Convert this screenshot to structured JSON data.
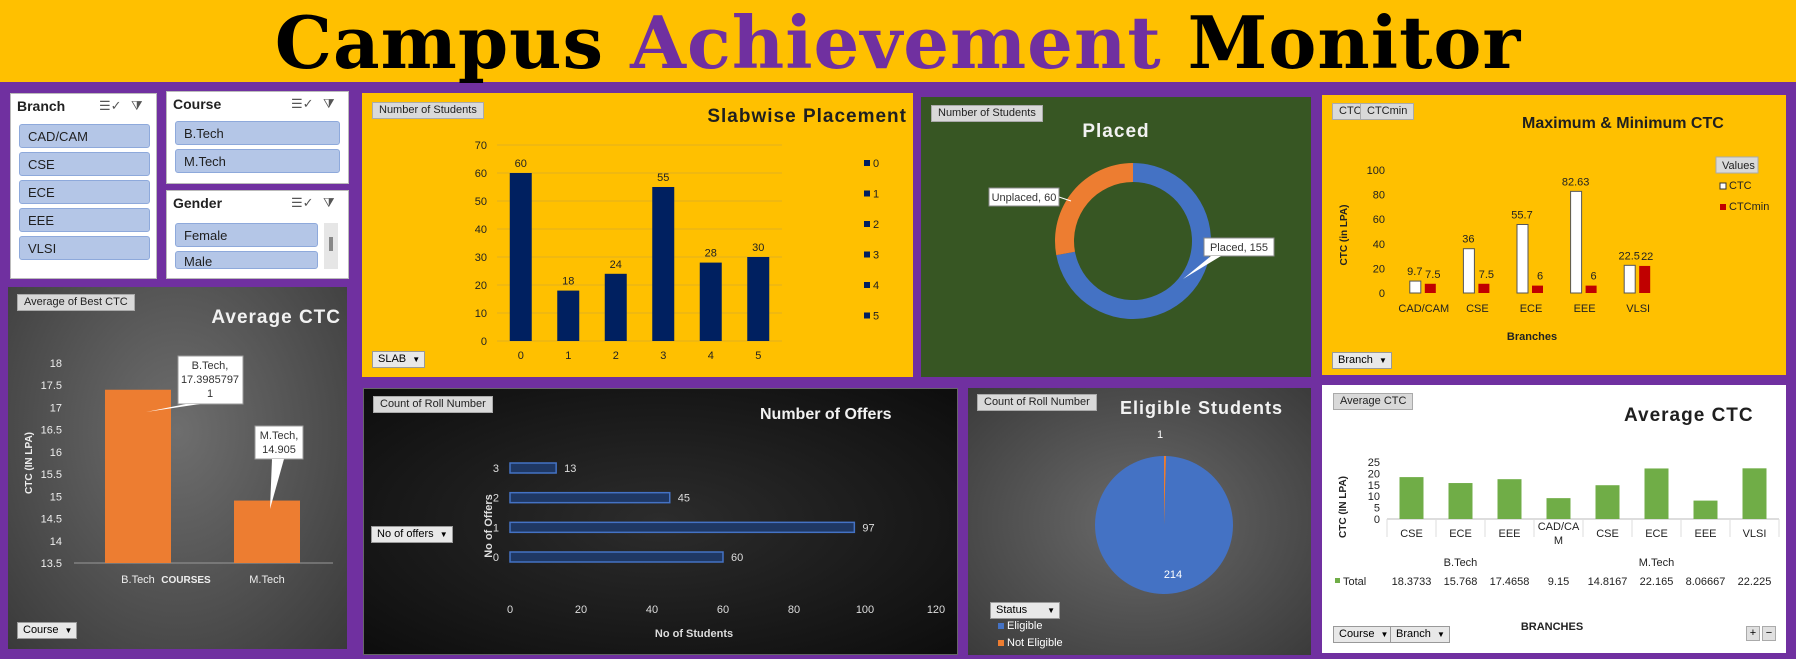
{
  "title": {
    "w1": "Campus",
    "w2": "Achievement",
    "w3": "Monitor"
  },
  "slicers": {
    "branch": {
      "header": "Branch",
      "items": [
        "CAD/CAM",
        "CSE",
        "ECE",
        "EEE",
        "VLSI"
      ]
    },
    "course": {
      "header": "Course",
      "items": [
        "B.Tech",
        "M.Tech"
      ]
    },
    "gender": {
      "header": "Gender",
      "items": [
        "Female",
        "Male"
      ]
    }
  },
  "slab": {
    "field": "Number of Students",
    "title": "Slabwise Placement",
    "filter": "SLAB",
    "chart_data": {
      "type": "bar",
      "categories": [
        "0",
        "1",
        "2",
        "3",
        "4",
        "5"
      ],
      "values": [
        60,
        18,
        24,
        55,
        28,
        30
      ],
      "ylim": [
        0,
        70
      ],
      "yticks": [
        0,
        10,
        20,
        30,
        40,
        50,
        60,
        70
      ],
      "legend": [
        "0",
        "1",
        "2",
        "3",
        "4",
        "5"
      ]
    }
  },
  "placed": {
    "field": "Number of Students",
    "title": "Placed",
    "chart_data": {
      "type": "pie",
      "slices": [
        {
          "label": "Unplaced, 60",
          "value": 60,
          "color": "#ed7d31"
        },
        {
          "label": "Placed, 155",
          "value": 155,
          "color": "#4472c4"
        }
      ]
    }
  },
  "ctc_range": {
    "fields": [
      "CTC",
      "CTCmin"
    ],
    "title": "Maximum & Minimum CTC",
    "ylabel": "CTC (in LPA)",
    "xlabel": "Branches",
    "legend_title": "Values",
    "legend": [
      "CTC",
      "CTCmin"
    ],
    "filter": "Branch",
    "chart_data": {
      "type": "bar",
      "categories": [
        "CAD/CAM",
        "CSE",
        "ECE",
        "EEE",
        "VLSI"
      ],
      "series": [
        {
          "name": "CTC",
          "values": [
            9.7,
            36,
            55.7,
            82.63,
            22.5
          ]
        },
        {
          "name": "CTCmin",
          "values": [
            7.5,
            7.5,
            6,
            6,
            22
          ]
        }
      ],
      "value_labels": {
        "CTC": [
          "9.7",
          "36",
          "55.7",
          "82.63",
          "22.5"
        ],
        "CTCmin": [
          "7.5",
          "7.5",
          "6",
          "6",
          "22"
        ]
      },
      "ylim": [
        0,
        100
      ],
      "yticks": [
        0,
        20,
        40,
        60,
        80,
        100
      ]
    }
  },
  "avg_ctc_course": {
    "field": "Average of Best CTC",
    "title": "Average CTC",
    "ylabel": "CTC (IN LPA)",
    "xlabel": "COURSES",
    "filter": "Course",
    "chart_data": {
      "type": "bar",
      "categories": [
        "B.Tech",
        "M.Tech"
      ],
      "values": [
        17.3985797,
        14.905
      ],
      "callouts": [
        [
          "B.Tech,",
          "17.3985797",
          "1"
        ],
        [
          "M.Tech,",
          "14.905"
        ]
      ],
      "ylim": [
        13.5,
        18
      ],
      "yticks": [
        "13.5",
        "14",
        "14.5",
        "15",
        "15.5",
        "16",
        "16.5",
        "17",
        "17.5",
        "18"
      ]
    }
  },
  "offers": {
    "field": "Count of Roll Number",
    "title": "Number of Offers",
    "ylabel": "No of Offers",
    "xlabel": "No of Students",
    "filter": "No of offers",
    "chart_data": {
      "type": "bar",
      "categories": [
        "0",
        "1",
        "2",
        "3"
      ],
      "values": [
        60,
        97,
        45,
        13
      ],
      "xlim": [
        0,
        120
      ],
      "xticks": [
        0,
        20,
        40,
        60,
        80,
        100,
        120
      ]
    }
  },
  "eligible": {
    "field": "Count of Roll Number",
    "title": "Eligible Students",
    "filter": "Status",
    "legend": [
      "Eligible",
      "Not Eligible"
    ],
    "chart_data": {
      "type": "pie",
      "slices": [
        {
          "label": "214",
          "value": 214,
          "color": "#4472c4"
        },
        {
          "label": "1",
          "value": 1,
          "color": "#ed7d31"
        }
      ]
    }
  },
  "avg_ctc_branch": {
    "field": "Average CTC",
    "title": "Average CTC",
    "ylabel": "CTC (IN LPA)",
    "xlabel": "BRANCHES",
    "filters": [
      "Course",
      "Branch"
    ],
    "table_row_label": "Total",
    "chart_data": {
      "type": "bar",
      "groups": [
        {
          "name": "B.Tech",
          "categories": [
            "CSE",
            "ECE",
            "EEE"
          ]
        },
        {
          "name": "M.Tech",
          "categories": [
            "CAD/CA M",
            "CSE",
            "ECE",
            "EEE",
            "VLSI"
          ]
        }
      ],
      "values": [
        18.3733,
        15.768,
        17.4658,
        9.15,
        14.8167,
        22.165,
        8.06667,
        22.225
      ],
      "value_labels": [
        "18.3733",
        "15.768",
        "17.4658",
        "9.15",
        "14.8167",
        "22.165",
        "8.06667",
        "22.225"
      ],
      "ylim": [
        0,
        25
      ],
      "yticks": [
        0,
        5,
        10,
        15,
        20,
        25
      ]
    }
  }
}
